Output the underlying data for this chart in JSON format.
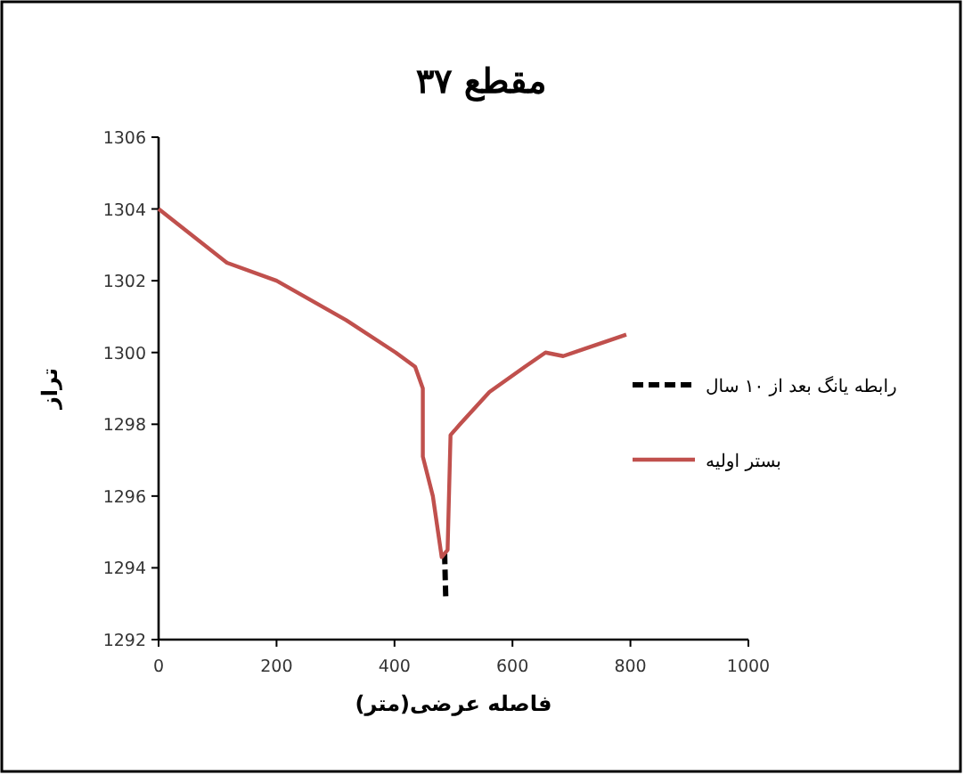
{
  "chart_data": {
    "type": "line",
    "title": "مقطع ۳۷",
    "xlabel": "فاصله عرضی(متر)",
    "ylabel": "تراز",
    "xlim": [
      0,
      1000
    ],
    "xticks": [
      0,
      200,
      400,
      600,
      800,
      1000
    ],
    "ylim": [
      1292,
      1306
    ],
    "yticks": [
      1292,
      1294,
      1296,
      1298,
      1300,
      1302,
      1304,
      1306
    ],
    "grid": false,
    "legend": "right",
    "marker": "none",
    "series": [
      {
        "name": "رابطه یانگ بعد از ۱۰ سال",
        "color": "#000000",
        "line_style": "dashed",
        "x": [
          485,
          486,
          487
        ],
        "values": [
          1294.4,
          1293.7,
          1293.1
        ]
      },
      {
        "name": "بستر اولیه",
        "color": "#c0504d",
        "line_style": "solid",
        "x": [
          0,
          116,
          200,
          318,
          402,
          435,
          448,
          448,
          465,
          480,
          490,
          495,
          511,
          561,
          621,
          656,
          686,
          722,
          793
        ],
        "values": [
          1304,
          1302.5,
          1302,
          1300.9,
          1300,
          1299.6,
          1299,
          1297.1,
          1296,
          1294.3,
          1294.5,
          1297.7,
          1298,
          1298.9,
          1299.6,
          1300,
          1299.9,
          1300.1,
          1300.5
        ]
      }
    ]
  }
}
